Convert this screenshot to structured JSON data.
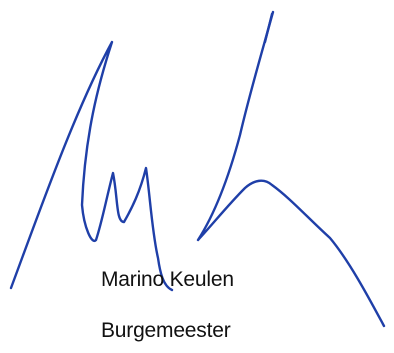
{
  "signatory": {
    "name": "Marino Keulen",
    "title": "Burgemeester"
  },
  "signature": {
    "ink_color": "#1f3fa8"
  }
}
